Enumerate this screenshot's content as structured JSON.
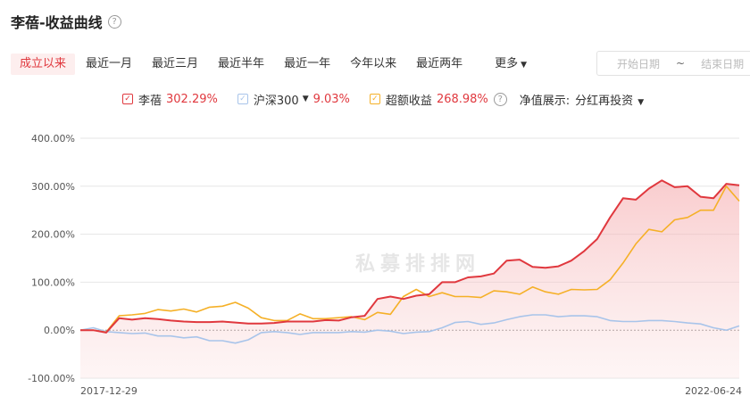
{
  "header": {
    "title": "李蓓-收益曲线",
    "help_icon": "help-circle-icon"
  },
  "tabs": [
    {
      "label": "成立以来",
      "active": true
    },
    {
      "label": "最近一月"
    },
    {
      "label": "最近三月"
    },
    {
      "label": "最近半年"
    },
    {
      "label": "最近一年"
    },
    {
      "label": "今年以来"
    },
    {
      "label": "最近两年"
    }
  ],
  "more_label": "更多",
  "date_range": {
    "start_placeholder": "开始日期",
    "separator": "~",
    "end_placeholder": "结束日期"
  },
  "legend": [
    {
      "name": "李蓓",
      "value": "302.29%",
      "color": "#e0383e"
    },
    {
      "name": "沪深300",
      "value": "9.03%",
      "color": "#a8c4ea",
      "dropdown": true
    },
    {
      "name": "超额收益",
      "value": "268.98%",
      "color": "#f5b027",
      "help": true
    }
  ],
  "nav_display": {
    "label": "净值展示:",
    "value": "分红再投资"
  },
  "watermark": "私募排排网",
  "chart_data": {
    "type": "line",
    "y_ticks": [
      "400.00%",
      "300.00%",
      "200.00%",
      "100.00%",
      "0.00%",
      "-100.00%"
    ],
    "ylim": [
      -100,
      400
    ],
    "x_labels": [
      "2017-12-29",
      "2022-06-24"
    ],
    "series": [
      {
        "name": "李蓓",
        "color": "#e0383e",
        "area": true,
        "values": [
          0,
          0,
          -5,
          25,
          22,
          25,
          23,
          20,
          18,
          17,
          17,
          18,
          16,
          14,
          14,
          15,
          18,
          18,
          18,
          21,
          20,
          27,
          30,
          65,
          70,
          65,
          72,
          75,
          100,
          100,
          110,
          112,
          118,
          145,
          147,
          132,
          130,
          133,
          145,
          165,
          190,
          235,
          275,
          272,
          295,
          312,
          298,
          300,
          278,
          275,
          305,
          302
        ]
      },
      {
        "name": "沪深300",
        "color": "#a8c4ea",
        "values": [
          0,
          5,
          -3,
          -5,
          -7,
          -6,
          -12,
          -12,
          -16,
          -14,
          -22,
          -22,
          -27,
          -20,
          -5,
          -3,
          -5,
          -9,
          -5,
          -5,
          -5,
          -3,
          -4,
          0,
          -2,
          -7,
          -4,
          -3,
          5,
          16,
          18,
          12,
          15,
          22,
          28,
          32,
          32,
          28,
          30,
          30,
          28,
          20,
          18,
          18,
          20,
          20,
          18,
          15,
          13,
          5,
          0,
          9
        ]
      },
      {
        "name": "超额收益",
        "color": "#f5b027",
        "values": [
          0,
          0,
          -4,
          30,
          32,
          35,
          43,
          40,
          44,
          38,
          48,
          50,
          58,
          46,
          26,
          20,
          20,
          34,
          24,
          24,
          26,
          28,
          22,
          37,
          33,
          70,
          85,
          70,
          78,
          70,
          70,
          68,
          82,
          80,
          75,
          90,
          80,
          75,
          85,
          84,
          85,
          105,
          140,
          180,
          210,
          205,
          230,
          235,
          250,
          250,
          300,
          269
        ]
      }
    ]
  }
}
